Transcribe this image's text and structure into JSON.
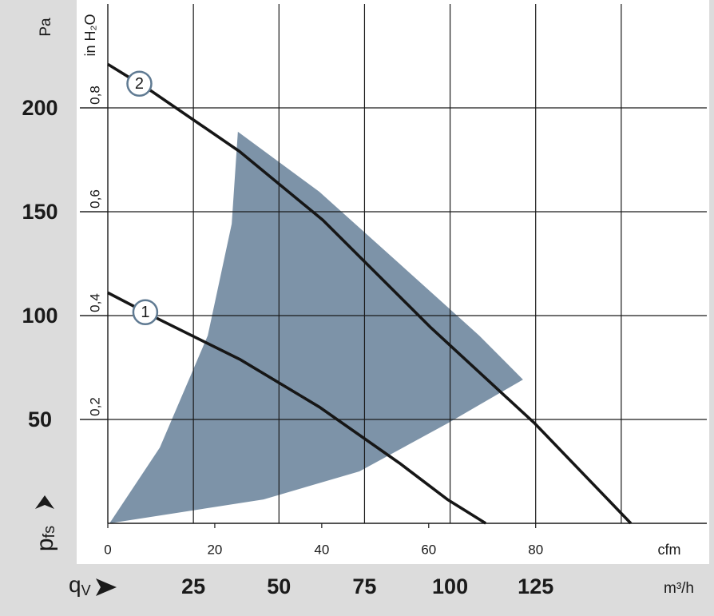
{
  "chart_data": {
    "type": "line",
    "ylabel_unit": "Pa",
    "y2label_unit": "in H₂O",
    "xlabel_unit": "m³/h",
    "x2label_unit": "cfm",
    "ylabel_symbol": "p",
    "ylabel_subscript": "fs",
    "xlabel_symbol": "q",
    "xlabel_subscript": "V",
    "xlim": [
      0,
      175
    ],
    "xticks": [
      25,
      50,
      75,
      100,
      125,
      {
        "value": 150,
        "label": null
      }
    ],
    "x2lim": [
      0,
      112
    ],
    "x2ticks": [
      0,
      20,
      40,
      60,
      80
    ],
    "ylim": [
      0,
      250
    ],
    "yticks": [
      50,
      100,
      150,
      200
    ],
    "y2lim": [
      0,
      1.0
    ],
    "y2ticks": [
      {
        "value": 0.2,
        "label": "0,2"
      },
      {
        "value": 0.4,
        "label": "0,4"
      },
      {
        "value": 0.6,
        "label": "0,6"
      },
      {
        "value": 0.8,
        "label": "0,8"
      }
    ],
    "grid": true,
    "region": {
      "color": "#7d93a8",
      "x": [
        0.5,
        15.2,
        29.2,
        36.2,
        38.0,
        61.8,
        85.2,
        108.5,
        121.3,
        99.2,
        73.5,
        45.5,
        0.5
      ],
      "values": [
        0,
        36.5,
        90.4,
        144.2,
        188.5,
        159.6,
        125,
        90.4,
        69.2,
        48.1,
        25,
        11.5,
        0
      ]
    },
    "series": [
      {
        "name": "1",
        "color": "#161616",
        "x": [
          0,
          15.2,
          38.5,
          61.8,
          85.2,
          99.2,
          110.4
        ],
        "values": [
          111,
          98,
          79,
          56,
          29,
          11.5,
          0
        ]
      },
      {
        "name": "2",
        "color": "#161616",
        "x": [
          0,
          12.8,
          38.5,
          62.8,
          94.5,
          124.8,
          152.8
        ],
        "values": [
          221,
          208,
          179,
          146,
          94,
          48,
          0
        ]
      }
    ]
  }
}
